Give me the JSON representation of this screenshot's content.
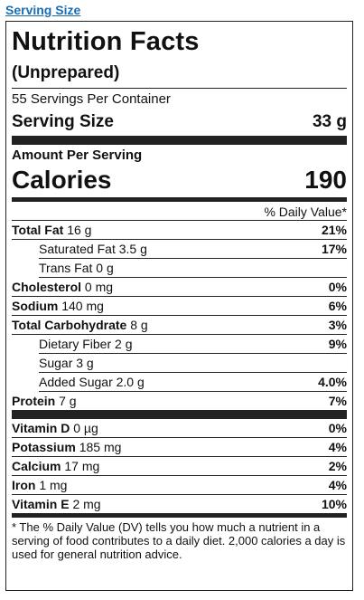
{
  "link": "Serving Size",
  "label": {
    "title": "Nutrition Facts",
    "subtitle": "(Unprepared)",
    "servings": "55 Servings Per Container",
    "serving_size_label": "Serving Size",
    "serving_size_value": "33 g",
    "amount_per_serving": "Amount Per Serving",
    "calories_label": "Calories",
    "calories_value": "190",
    "dv_header": "% Daily Value*",
    "nutrients": [
      {
        "name": "Total Fat",
        "amount": "16 g",
        "dv": "21%"
      },
      {
        "name": "Saturated Fat",
        "amount": "3.5 g",
        "dv": "17%"
      },
      {
        "name": "Trans Fat",
        "amount": "0 g",
        "dv": ""
      },
      {
        "name": "Cholesterol",
        "amount": "0 mg",
        "dv": "0%"
      },
      {
        "name": "Sodium",
        "amount": "140 mg",
        "dv": "6%"
      },
      {
        "name": "Total Carbohydrate",
        "amount": "8 g",
        "dv": "3%"
      },
      {
        "name": "Dietary Fiber",
        "amount": "2 g",
        "dv": "9%"
      },
      {
        "name": "Sugar",
        "amount": "3 g",
        "dv": ""
      },
      {
        "name": "Added Sugar",
        "amount": "2.0 g",
        "dv": "4.0%"
      },
      {
        "name": "Protein",
        "amount": "7 g",
        "dv": "7%"
      }
    ],
    "vitamins": [
      {
        "name": "Vitamin D",
        "amount": "0 µg",
        "dv": "0%"
      },
      {
        "name": "Potassium",
        "amount": "185 mg",
        "dv": "4%"
      },
      {
        "name": "Calcium",
        "amount": "17 mg",
        "dv": "2%"
      },
      {
        "name": "Iron",
        "amount": "1 mg",
        "dv": "4%"
      },
      {
        "name": "Vitamin E",
        "amount": "2 mg",
        "dv": "10%"
      }
    ],
    "footnote": "* The % Daily Value (DV) tells you how much a nutrient in a serving of food contributes to a daily diet. 2,000 calories a day is used for general nutrition advice."
  }
}
